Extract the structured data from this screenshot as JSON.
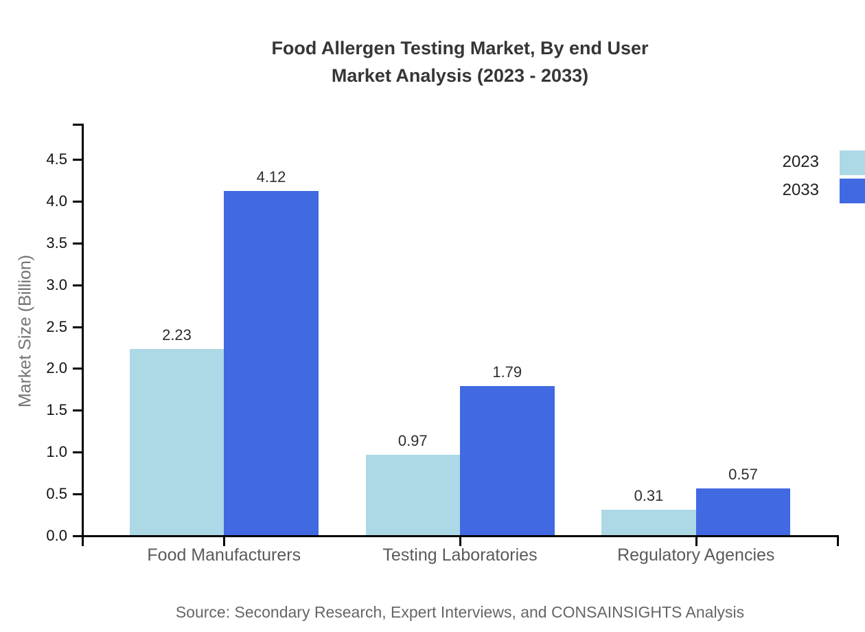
{
  "title": {
    "line1": "Food Allergen Testing Market, By end User",
    "line2": "Market Analysis (2023 - 2033)"
  },
  "chart_data": {
    "type": "bar",
    "categories": [
      "Food Manufacturers",
      "Testing Laboratories",
      "Regulatory Agencies"
    ],
    "series": [
      {
        "name": "2023",
        "color": "#ADD8E6",
        "values": [
          2.23,
          0.97,
          0.31
        ]
      },
      {
        "name": "2033",
        "color": "#4169E1",
        "values": [
          4.12,
          1.79,
          0.57
        ]
      }
    ],
    "xlabel": "",
    "ylabel": "Market Size (Billion)",
    "ylim": [
      0,
      4.93
    ],
    "yticks": [
      0.0,
      0.5,
      1.0,
      1.5,
      2.0,
      2.5,
      3.0,
      3.5,
      4.0,
      4.5
    ],
    "grid": false,
    "legend_position": "upper right outside plot, color swatches clipped at right image edge",
    "value_labels": true
  },
  "source": "Source: Secondary Research, Expert Interviews, and CONSAINSIGHTS Analysis",
  "colors": {
    "background": "#FFFFFF",
    "axis": "#000000",
    "title_text": "#363636",
    "tick_text": "#111111",
    "category_text": "#5A5A5A",
    "value_label_text": "#2E2E2E",
    "muted_text": "#6E6E6E"
  }
}
